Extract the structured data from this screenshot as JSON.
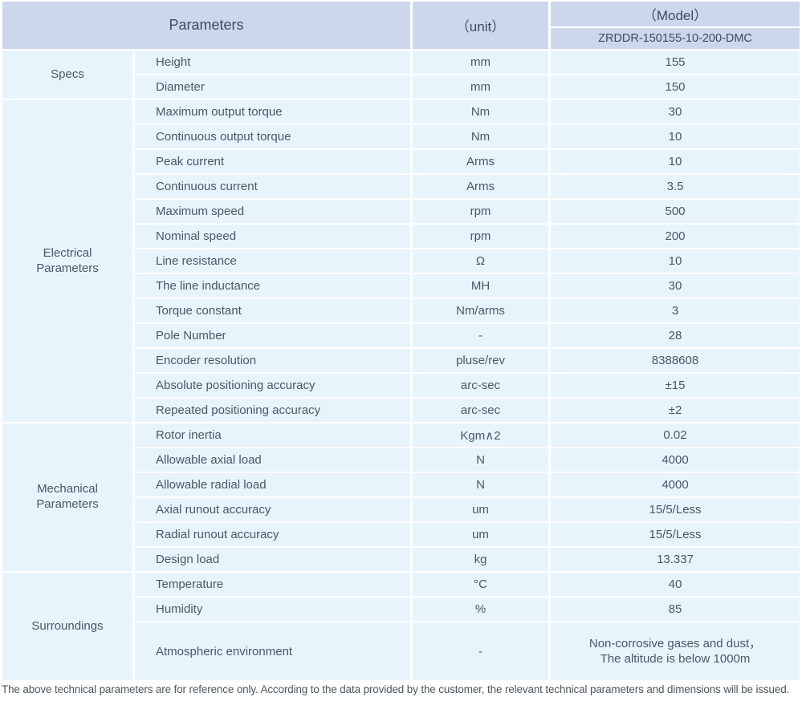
{
  "header": {
    "parameters_label": "Parameters",
    "unit_label": "（unit）",
    "model_label": "（Model）",
    "model_number": "ZRDDR-150155-10-200-DMC"
  },
  "groups": [
    {
      "id": "specs",
      "name": "Specs",
      "rows": [
        {
          "param": "Height",
          "unit": "mm",
          "value": "155"
        },
        {
          "param": "Diameter",
          "unit": "mm",
          "value": "150"
        }
      ]
    },
    {
      "id": "electrical-parameters",
      "name": "Electrical\nParameters",
      "rows": [
        {
          "param": "Maximum output torque",
          "unit": "Nm",
          "value": "30"
        },
        {
          "param": "Continuous output torque",
          "unit": "Nm",
          "value": "10"
        },
        {
          "param": "Peak current",
          "unit": "Arms",
          "value": "10"
        },
        {
          "param": "Continuous current",
          "unit": "Arms",
          "value": "3.5"
        },
        {
          "param": "Maximum speed",
          "unit": "rpm",
          "value": "500"
        },
        {
          "param": "Nominal speed",
          "unit": "rpm",
          "value": "200"
        },
        {
          "param": "Line resistance",
          "unit": "Ω",
          "value": "10"
        },
        {
          "param": "The line inductance",
          "unit": "MH",
          "value": "30"
        },
        {
          "param": "Torque constant",
          "unit": "Nm/arms",
          "value": "3"
        },
        {
          "param": "Pole Number",
          "unit": "-",
          "value": "28"
        },
        {
          "param": "Encoder resolution",
          "unit": "pluse/rev",
          "value": "8388608"
        },
        {
          "param": "Absolute positioning accuracy",
          "unit": "arc-sec",
          "value": "±15"
        },
        {
          "param": "Repeated positioning accuracy",
          "unit": "arc-sec",
          "value": "±2"
        }
      ]
    },
    {
      "id": "mechanical-parameters",
      "name": "Mechanical\nParameters",
      "rows": [
        {
          "param": "Rotor inertia",
          "unit": "Kgm∧2",
          "value": "0.02"
        },
        {
          "param": "Allowable axial load",
          "unit": "N",
          "value": "4000"
        },
        {
          "param": "Allowable radial load",
          "unit": "N",
          "value": "4000"
        },
        {
          "param": "Axial runout accuracy",
          "unit": "um",
          "value": "15/5/Less"
        },
        {
          "param": "Radial runout accuracy",
          "unit": "um",
          "value": "15/5/Less"
        },
        {
          "param": "Design load",
          "unit": "kg",
          "value": "13.337"
        }
      ]
    },
    {
      "id": "surroundings",
      "name": "Surroundings",
      "rows": [
        {
          "param": "Temperature",
          "unit": "°C",
          "value": "40"
        },
        {
          "param": "Humidity",
          "unit": "%",
          "value": "85"
        },
        {
          "param": "Atmospheric environment",
          "unit": "-",
          "value": "Non-corrosive gases and dust，\nThe altitude is below 1000m",
          "tall": true
        }
      ]
    }
  ],
  "footer_note": "The above technical parameters are for reference only. According to the data provided by the customer, the relevant technical parameters and dimensions will be issued.",
  "colors": {
    "header_bg": "#ccd7ee",
    "row_bg": "#e7f4fc",
    "text": "#4a5864"
  }
}
